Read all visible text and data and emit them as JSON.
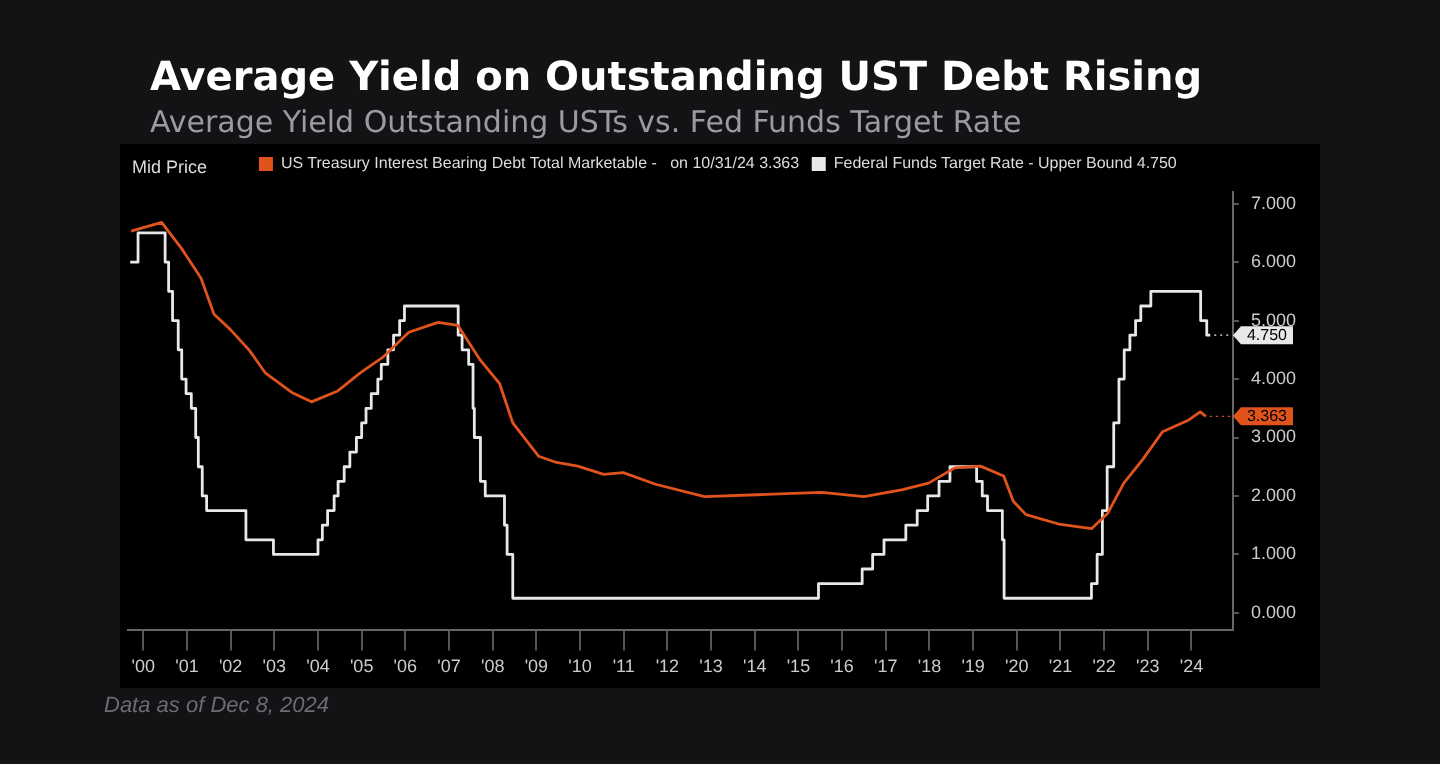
{
  "chart_data": {
    "type": "step",
    "title": "Average Yield on Outstanding UST Debt Rising",
    "subtitle": "Average Yield Outstanding USTs vs. Fed Funds Target Rate",
    "series": [
      {
        "name": "US Treasury Interest Bearing Debt Total Marketable -   on 10/31/24 3.363",
        "color": "#e0531c",
        "type": "line",
        "x": [
          1999.72,
          2000.42,
          2000.87,
          2001.32,
          2001.62,
          2001.99,
          2002.43,
          2002.8,
          2003.4,
          2003.85,
          2004.44,
          2004.96,
          2005.48,
          2006.08,
          2006.75,
          2007.2,
          2007.71,
          2008.16,
          2008.46,
          2009.05,
          2009.43,
          2009.95,
          2010.54,
          2010.99,
          2011.73,
          2012.85,
          2014.41,
          2015.53,
          2016.5,
          2017.39,
          2017.98,
          2018.58,
          2019.17,
          2019.7,
          2019.92,
          2020.21,
          2020.96,
          2021.71,
          2022.08,
          2022.45,
          2022.89,
          2023.34,
          2023.94,
          2024.2,
          2024.33
        ],
        "values": [
          6.53,
          6.68,
          6.24,
          5.73,
          5.11,
          4.85,
          4.49,
          4.1,
          3.77,
          3.61,
          3.79,
          4.1,
          4.37,
          4.8,
          4.97,
          4.92,
          4.33,
          3.92,
          3.25,
          2.68,
          2.58,
          2.51,
          2.37,
          2.4,
          2.2,
          1.99,
          2.03,
          2.06,
          1.99,
          2.11,
          2.22,
          2.48,
          2.51,
          2.34,
          1.91,
          1.68,
          1.52,
          1.44,
          1.7,
          2.22,
          2.63,
          3.1,
          3.3,
          3.44,
          3.363
        ]
      },
      {
        "name": "Federal Funds Target Rate - Upper Bound 4.750",
        "color": "#e8e8e8",
        "x": [
          1999.7,
          1999.88,
          2000.5,
          2000.58,
          2000.67,
          2000.8,
          2000.88,
          2000.98,
          2001.1,
          2001.2,
          2001.26,
          2001.35,
          2001.45,
          2002.35,
          2002.98,
          2004.0,
          2004.1,
          2004.22,
          2004.37,
          2004.46,
          2004.6,
          2004.73,
          2004.88,
          2005.0,
          2005.1,
          2005.22,
          2005.37,
          2005.45,
          2005.6,
          2005.73,
          2005.87,
          2005.98,
          2007.21,
          2007.3,
          2007.45,
          2007.55,
          2007.58,
          2007.72,
          2007.83,
          2008.27,
          2008.33,
          2008.46,
          2015.46,
          2016.46,
          2016.7,
          2016.96,
          2017.46,
          2017.72,
          2017.96,
          2018.22,
          2018.47,
          2019.08,
          2019.21,
          2019.33,
          2019.67,
          2019.71,
          2021.71,
          2021.84,
          2021.96,
          2022.07,
          2022.22,
          2022.34,
          2022.46,
          2022.59,
          2022.72,
          2022.84,
          2023.07,
          2024.21,
          2024.35,
          2024.43
        ],
        "values": [
          6.0,
          6.5,
          6.0,
          5.5,
          5.0,
          4.5,
          4.0,
          3.75,
          3.5,
          3.0,
          2.5,
          2.0,
          1.75,
          1.25,
          1.0,
          1.25,
          1.5,
          1.75,
          2.0,
          2.25,
          2.5,
          2.75,
          3.0,
          3.25,
          3.5,
          3.75,
          4.0,
          4.25,
          4.5,
          4.75,
          5.0,
          5.25,
          4.75,
          4.5,
          4.25,
          3.5,
          3.0,
          2.25,
          2.0,
          1.5,
          1.0,
          0.25,
          0.5,
          0.75,
          1.0,
          1.25,
          1.5,
          1.75,
          2.0,
          2.25,
          2.5,
          2.25,
          2.0,
          1.75,
          1.25,
          0.25,
          0.5,
          1.0,
          1.75,
          2.5,
          3.25,
          4.0,
          4.5,
          4.75,
          5.0,
          5.25,
          5.5,
          5.0,
          4.75,
          4.75
        ]
      }
    ],
    "xlim": [
      1999.65,
      2024.95
    ],
    "xticks": [
      {
        "value": 2000,
        "label": "'00"
      },
      {
        "value": 2001,
        "label": "'01"
      },
      {
        "value": 2002,
        "label": "'02"
      },
      {
        "value": 2003,
        "label": "'03"
      },
      {
        "value": 2004,
        "label": "'04"
      },
      {
        "value": 2005,
        "label": "'05"
      },
      {
        "value": 2006,
        "label": "'06"
      },
      {
        "value": 2007,
        "label": "'07"
      },
      {
        "value": 2008,
        "label": "'08"
      },
      {
        "value": 2009,
        "label": "'09"
      },
      {
        "value": 2010,
        "label": "'10"
      },
      {
        "value": 2011,
        "label": "'11"
      },
      {
        "value": 2012,
        "label": "'12"
      },
      {
        "value": 2013,
        "label": "'13"
      },
      {
        "value": 2014,
        "label": "'14"
      },
      {
        "value": 2015,
        "label": "'15"
      },
      {
        "value": 2016,
        "label": "'16"
      },
      {
        "value": 2017,
        "label": "'17"
      },
      {
        "value": 2018,
        "label": "'18"
      },
      {
        "value": 2019,
        "label": "'19"
      },
      {
        "value": 2020,
        "label": "'20"
      },
      {
        "value": 2021,
        "label": "'21"
      },
      {
        "value": 2022,
        "label": "'22"
      },
      {
        "value": 2023,
        "label": "'23"
      },
      {
        "value": 2024,
        "label": "'24"
      }
    ],
    "ylim": [
      -0.3,
      7.2
    ],
    "yticks": [
      {
        "value": 0,
        "label": "0.000"
      },
      {
        "value": 1,
        "label": "1.000"
      },
      {
        "value": 2,
        "label": "2.000"
      },
      {
        "value": 3,
        "label": "3.000"
      },
      {
        "value": 4,
        "label": "4.000"
      },
      {
        "value": 5,
        "label": "5.000"
      },
      {
        "value": 6,
        "label": "6.000"
      },
      {
        "value": 7,
        "label": "7.000"
      }
    ],
    "grid": false,
    "legend": "top",
    "marker": "none",
    "line_style": "solid",
    "annotations": [
      {
        "text": "3.363",
        "x": 2024.33,
        "y": 3.363
      },
      {
        "text": "4.750",
        "x": 2024.43,
        "y": 4.75
      },
      "Mid Price",
      "Data as of Dec 8, 2024"
    ]
  }
}
